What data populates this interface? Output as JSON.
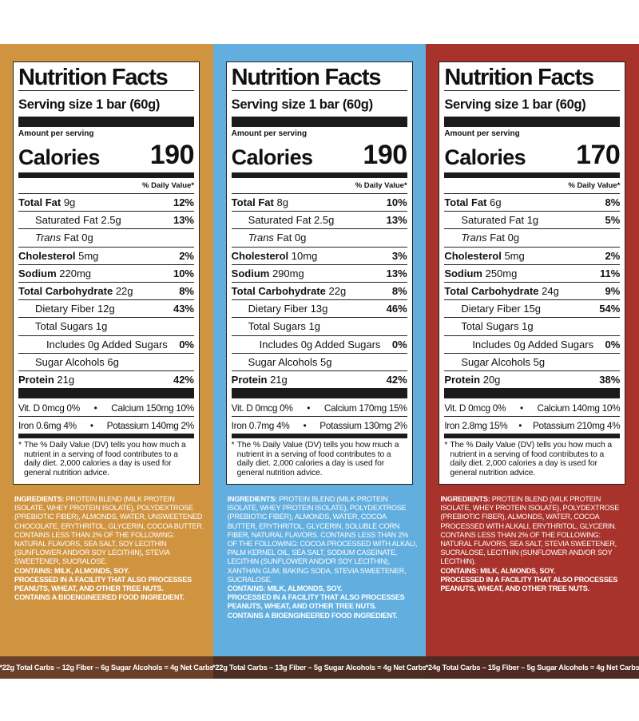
{
  "colors": {
    "panel_1_bg": "#d09440",
    "panel_1_footer": "#6b4028",
    "panel_2_bg": "#62aedf",
    "panel_2_footer": "#4a2f22",
    "panel_3_bg": "#a8322c",
    "panel_3_footer": "#4e2a22"
  },
  "common": {
    "title": "Nutrition Facts",
    "serving_size": "Serving size  1 bar (60g)",
    "amount_per_serving": "Amount per serving",
    "calories_label": "Calories",
    "dv_header": "% Daily Value*",
    "total_fat": "Total Fat",
    "saturated_fat": "Saturated Fat",
    "trans_word": "Trans",
    "trans_rest": " Fat 0g",
    "cholesterol": "Cholesterol",
    "sodium": "Sodium",
    "total_carb": "Total Carbohydrate",
    "dietary_fiber": "Dietary Fiber",
    "total_sugars": "Total Sugars 1g",
    "added_sugars": "Includes 0g Added Sugars",
    "added_sugars_pct": "0%",
    "protein": "Protein",
    "footnote_star": "*",
    "footnote": "The % Daily Value (DV) tells you how much a nutrient in a serving of food contributes to a daily diet. 2,000 calories a day is used for general nutrition advice."
  },
  "panels": [
    {
      "calories": "190",
      "total_fat_amt": " 9g",
      "total_fat_pct": "12%",
      "sat_fat_amt": " 2.5g",
      "sat_fat_pct": "13%",
      "cholesterol_amt": " 5mg",
      "cholesterol_pct": "2%",
      "sodium_amt": " 220mg",
      "sodium_pct": "10%",
      "carb_amt": " 22g",
      "carb_pct": "8%",
      "fiber_amt": " 12g",
      "fiber_pct": "43%",
      "sugar_alcohols": "Sugar Alcohols 6g",
      "protein_amt": " 21g",
      "protein_pct": "42%",
      "vit_d": "Vit. D 0mcg 0%",
      "calcium": "Calcium 150mg 10%",
      "iron": "Iron 0.6mg 4%",
      "potassium": "Potassium 140mg 2%",
      "ingredients_label": "INGREDIENTS:",
      "ingredients": " PROTEIN BLEND (MILK PROTEIN ISOLATE, WHEY PROTEIN ISOLATE), POLYDEXTROSE (PREBIOTIC FIBER), ALMONDS, WATER, UNSWEETENED CHOCOLATE, ERYTHRITOL, GLYCERIN, COCOA BUTTER. CONTAINS LESS THAN 2% OF THE FOLLOWING: NATURAL FLAVORS, SEA SALT, SOY LECITHIN (SUNFLOWER AND/OR SOY LECITHIN), STEVIA SWEETENER, SUCRALOSE.",
      "contains": "CONTAINS: MILK, ALMONDS, SOY.",
      "facility": "PROCESSED IN A FACILITY THAT ALSO PROCESSES PEANUTS, WHEAT, AND OTHER TREE NUTS.",
      "bioengineered": "CONTAINS A BIOENGINEERED FOOD INGREDIENT.",
      "net_carbs": "*22g Total Carbs – 12g Fiber – 6g Sugar Alcohols = 4g Net Carbs"
    },
    {
      "calories": "190",
      "total_fat_amt": " 8g",
      "total_fat_pct": "10%",
      "sat_fat_amt": " 2.5g",
      "sat_fat_pct": "13%",
      "cholesterol_amt": " 10mg",
      "cholesterol_pct": "3%",
      "sodium_amt": " 290mg",
      "sodium_pct": "13%",
      "carb_amt": " 22g",
      "carb_pct": "8%",
      "fiber_amt": " 13g",
      "fiber_pct": "46%",
      "sugar_alcohols": "Sugar Alcohols 5g",
      "protein_amt": " 21g",
      "protein_pct": "42%",
      "vit_d": "Vit. D 0mcg 0%",
      "calcium": "Calcium 170mg 15%",
      "iron": "Iron 0.7mg 4%",
      "potassium": "Potassium 130mg 2%",
      "ingredients_label": "INGREDIENTS:",
      "ingredients": " PROTEIN BLEND (MILK PROTEIN ISOLATE, WHEY PROTEIN ISOLATE), POLYDEXTROSE (PREBIOTIC FIBER), ALMONDS, WATER, COCOA BUTTER, ERYTHRITOL, GLYCERIN, SOLUBLE CORN FIBER, NATURAL FLAVORS. CONTAINS LESS THAN 2% OF THE FOLLOWING: COCOA PROCESSED WITH ALKALI, PALM KERNEL OIL, SEA SALT, SODIUM CASEINATE, LECITHIN (SUNFLOWER AND/OR SOY LECITHIN), XANTHAN GUM, BAKING SODA, STEVIA SWEETENER, SUCRALOSE.",
      "contains": "CONTAINS: MILK, ALMONDS, SOY.",
      "facility": "PROCESSED IN A FACILITY THAT ALSO PROCESSES PEANUTS, WHEAT, AND OTHER TREE NUTS.",
      "bioengineered": "CONTAINS A BIOENGINEERED FOOD INGREDIENT.",
      "net_carbs": "*22g Total Carbs – 13g Fiber – 5g Sugar Alcohols = 4g Net Carbs"
    },
    {
      "calories": "170",
      "total_fat_amt": " 6g",
      "total_fat_pct": "8%",
      "sat_fat_amt": " 1g",
      "sat_fat_pct": "5%",
      "cholesterol_amt": " 5mg",
      "cholesterol_pct": "2%",
      "sodium_amt": " 250mg",
      "sodium_pct": "11%",
      "carb_amt": " 24g",
      "carb_pct": "9%",
      "fiber_amt": " 15g",
      "fiber_pct": "54%",
      "sugar_alcohols": "Sugar Alcohols 5g",
      "protein_amt": " 20g",
      "protein_pct": "38%",
      "vit_d": "Vit. D 0mcg 0%",
      "calcium": "Calcium 140mg 10%",
      "iron": "Iron 2.8mg 15%",
      "potassium": "Potassium 210mg 4%",
      "ingredients_label": "INGREDIENTS:",
      "ingredients": " PROTEIN BLEND (MILK PROTEIN ISOLATE, WHEY PROTEIN ISOLATE), POLYDEXTROSE (PREBIOTIC FIBER), ALMONDS, WATER, COCOA PROCESSED WITH ALKALI, ERYTHRITOL, GLYCERIN. CONTAINS LESS THAN 2% OF THE FOLLOWING: NATURAL FLAVORS, SEA SALT, STEVIA SWEETENER, SUCRALOSE, LECITHIN (SUNFLOWER AND/OR SOY LECITHIN).",
      "contains": "CONTAINS: MILK, ALMONDS, SOY.",
      "facility": "PROCESSED IN A FACILITY THAT ALSO PROCESSES PEANUTS, WHEAT, AND OTHER TREE NUTS.",
      "bioengineered": "",
      "net_carbs": "*24g Total Carbs – 15g Fiber – 5g Sugar Alcohols = 4g Net Carbs"
    }
  ]
}
